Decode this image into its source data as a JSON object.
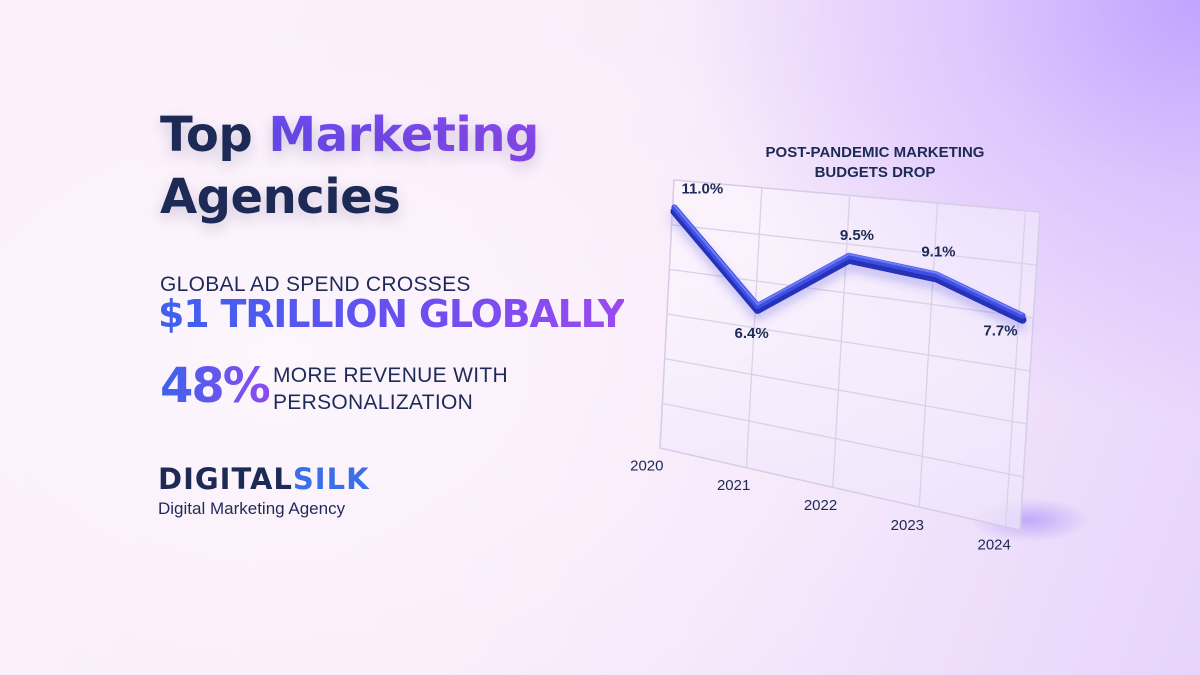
{
  "headline": {
    "line1_plain": "Top ",
    "line1_accent": "Marketing",
    "line2": "Agencies"
  },
  "stats": {
    "kicker": "GLOBAL AD SPEND CROSSES",
    "big": "$1 TRILLION GLOBALLY",
    "percent": "48%",
    "percent_text_line1": "MORE REVENUE WITH",
    "percent_text_line2": "PERSONALIZATION"
  },
  "brand": {
    "logo_part1": "DIGITAL",
    "logo_part2": "SILK",
    "tagline": "Digital Marketing Agency"
  },
  "colors": {
    "navy": "#1c2a55",
    "accent_purple": "#8b4cf0",
    "accent_blue": "#3d62ec",
    "line_blue": "#3f4fe3"
  },
  "chart_data": {
    "type": "line",
    "title": "POST-PANDEMIC MARKETING BUDGETS DROP",
    "x": [
      "2020",
      "2021",
      "2022",
      "2023",
      "2024"
    ],
    "series": [
      {
        "values": [
          11.0,
          6.4,
          9.5,
          9.1,
          7.7
        ],
        "labels": [
          "11.0%",
          "6.4%",
          "9.5%",
          "9.1%",
          "7.7%"
        ]
      }
    ],
    "grid": true,
    "perspective": "3d-tilted"
  }
}
